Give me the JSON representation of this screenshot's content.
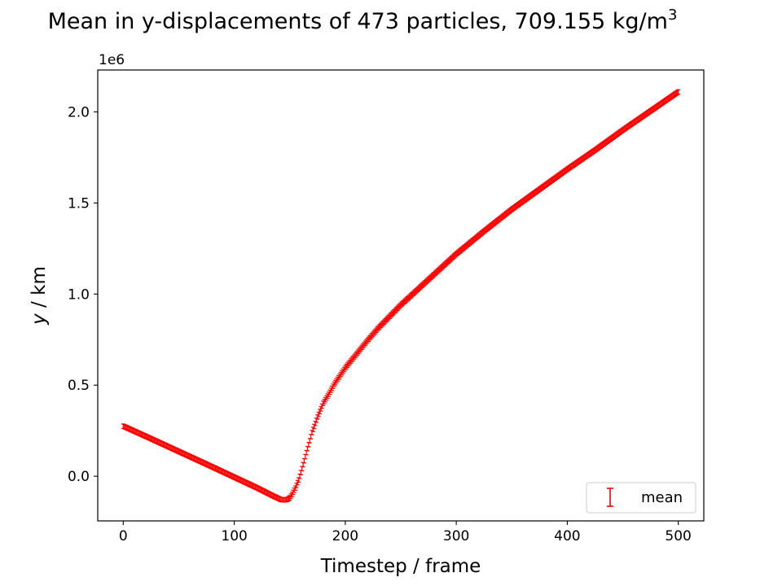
{
  "chart_data": {
    "type": "scatter",
    "title": "Mean in y-displacements of 473 particles, 709.155 kg/m",
    "title_superscript": "3",
    "xlabel": "Timestep / frame",
    "ylabel_italic": "y",
    "ylabel_rest": " / km",
    "offset_text": "1e6",
    "xlim": [
      -23,
      523
    ],
    "ylim": [
      -245000,
      2230000
    ],
    "x_ticks": [
      0,
      100,
      200,
      300,
      400,
      500
    ],
    "x_tick_labels": [
      "0",
      "100",
      "200",
      "300",
      "400",
      "500"
    ],
    "y_ticks": [
      0,
      500000,
      1000000,
      1500000,
      2000000
    ],
    "y_tick_labels": [
      "0.0",
      "0.5",
      "1.0",
      "1.5",
      "2.0"
    ],
    "grid": false,
    "legend_position": "lower right",
    "series": [
      {
        "name": "mean",
        "color": "#ff0000",
        "marker": "errorbar",
        "x_start": 0,
        "x_end": 500,
        "x_step": 1,
        "anchor_x": [
          0,
          20,
          40,
          60,
          80,
          100,
          120,
          135,
          142,
          145,
          148,
          150,
          152,
          155,
          158,
          160,
          163,
          165,
          168,
          170,
          173,
          175,
          178,
          180,
          185,
          190,
          195,
          200,
          210,
          220,
          230,
          250,
          275,
          300,
          325,
          350,
          375,
          400,
          425,
          450,
          475,
          500
        ],
        "anchor_y": [
          275000,
          220000,
          164000,
          108000,
          52000,
          -5000,
          -62000,
          -108000,
          -128000,
          -130000,
          -127000,
          -118000,
          -100000,
          -65000,
          -20000,
          20000,
          85000,
          130000,
          195000,
          240000,
          290000,
          325000,
          370000,
          400000,
          450000,
          505000,
          550000,
          595000,
          670000,
          745000,
          815000,
          940000,
          1080000,
          1220000,
          1345000,
          1465000,
          1575000,
          1685000,
          1790000,
          1900000,
          2005000,
          2110000
        ],
        "error": 12000
      }
    ]
  }
}
